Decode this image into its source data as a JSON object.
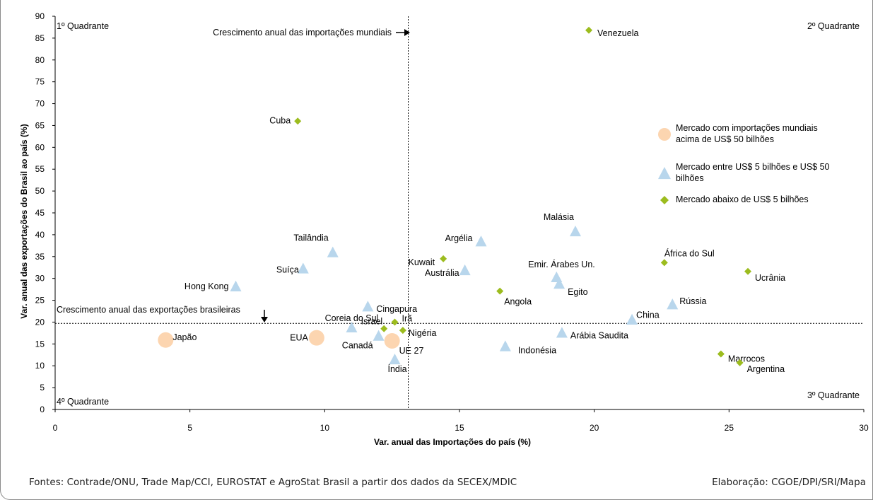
{
  "chart_data": {
    "type": "scatter",
    "xlabel": "Var. anual das Importações do país (%)",
    "ylabel": "Var. anual das exportações do Brasil ao país (%)",
    "xlim": [
      0,
      30
    ],
    "ylim": [
      0,
      90
    ],
    "x_ticks": [
      "0",
      "5",
      "10",
      "15",
      "20",
      "25",
      "30"
    ],
    "y_ticks": [
      "0",
      "5",
      "10",
      "15",
      "20",
      "25",
      "30",
      "35",
      "40",
      "45",
      "50",
      "55",
      "60",
      "65",
      "70",
      "75",
      "80",
      "85",
      "90"
    ],
    "grid": false,
    "reference_lines": {
      "vertical_x": 13.1,
      "vertical_label": "Crescimento anual das importações mundiais",
      "horizontal_y": 19.7,
      "horizontal_label": "Crescimento anual das exportações brasileiras"
    },
    "quadrants": [
      "1º Quadrante",
      "2º Quadrante",
      "3º Quadrante",
      "4º Quadrante"
    ],
    "series": [
      {
        "name": "Mercado com importações mundiais acima de US$ 50 bilhões",
        "legend_lines": [
          "Mercado com importações mundiais",
          "acima de US$ 50 bilhões"
        ],
        "marker": "circle",
        "color": "#fcd5b0",
        "points": [
          {
            "label": "Japão",
            "x": 4.1,
            "y": 15.9
          },
          {
            "label": "EUA",
            "x": 9.7,
            "y": 16.4
          },
          {
            "label": "UE 27",
            "x": 12.5,
            "y": 15.7
          }
        ]
      },
      {
        "name": "Mercado entre US$ 5 bilhões e US$ 50 bilhões",
        "legend_lines": [
          "Mercado entre US$ 5 bilhões e US$ 50",
          "bilhões"
        ],
        "marker": "triangle",
        "color": "#b8d6ec",
        "points": [
          {
            "label": "Tailândia",
            "x": 10.3,
            "y": 36.0
          },
          {
            "label": "Suíça",
            "x": 9.2,
            "y": 32.3
          },
          {
            "label": "Hong Kong",
            "x": 6.7,
            "y": 28.2
          },
          {
            "label": "Cingapura",
            "x": 11.6,
            "y": 23.6
          },
          {
            "label": "Coreia do Sul",
            "x": 11.0,
            "y": 18.8
          },
          {
            "label": "Canadá",
            "x": 12.0,
            "y": 16.9
          },
          {
            "label": "Índia",
            "x": 12.6,
            "y": 11.5
          },
          {
            "label": "Argélia",
            "x": 15.8,
            "y": 38.5
          },
          {
            "label": "Austrália",
            "x": 15.2,
            "y": 31.9
          },
          {
            "label": "Malásia",
            "x": 19.3,
            "y": 40.8
          },
          {
            "label": "Emir. Árabes Un.",
            "x": 18.6,
            "y": 30.3
          },
          {
            "label": "Egito",
            "x": 18.7,
            "y": 28.8
          },
          {
            "label": "Indonésia",
            "x": 16.7,
            "y": 14.5
          },
          {
            "label": "Arábia Saudita",
            "x": 18.8,
            "y": 17.6
          },
          {
            "label": "China",
            "x": 21.4,
            "y": 20.6
          },
          {
            "label": "Rússia",
            "x": 22.9,
            "y": 24.1
          }
        ]
      },
      {
        "name": "Mercado abaixo de US$ 5 bilhões",
        "legend_lines": [
          "Mercado abaixo de US$ 5 bilhões"
        ],
        "marker": "diamond",
        "color": "#9cbc1e",
        "points": [
          {
            "label": "Venezuela",
            "x": 19.8,
            "y": 86.8
          },
          {
            "label": "Cuba",
            "x": 9.0,
            "y": 66.0
          },
          {
            "label": "Kuwait",
            "x": 14.4,
            "y": 34.5
          },
          {
            "label": "Angola",
            "x": 16.5,
            "y": 27.1
          },
          {
            "label": "Israel",
            "x": 12.2,
            "y": 18.5
          },
          {
            "label": "Irã",
            "x": 12.6,
            "y": 20.0
          },
          {
            "label": "Nigéria",
            "x": 12.9,
            "y": 18.1
          },
          {
            "label": "África do Sul",
            "x": 22.6,
            "y": 33.6
          },
          {
            "label": "Ucrânia",
            "x": 25.7,
            "y": 31.6
          },
          {
            "label": "Marrocos",
            "x": 24.7,
            "y": 12.7
          },
          {
            "label": "Argentina",
            "x": 25.4,
            "y": 10.7
          }
        ]
      }
    ]
  },
  "footer": {
    "source": "Fontes: Contrade/ONU, Trade Map/CCI, EUROSTAT e AgroStat Brasil a partir dos dados da SECEX/MDIC",
    "credit": "Elaboração: CGOE/DPI/SRI/Mapa"
  }
}
